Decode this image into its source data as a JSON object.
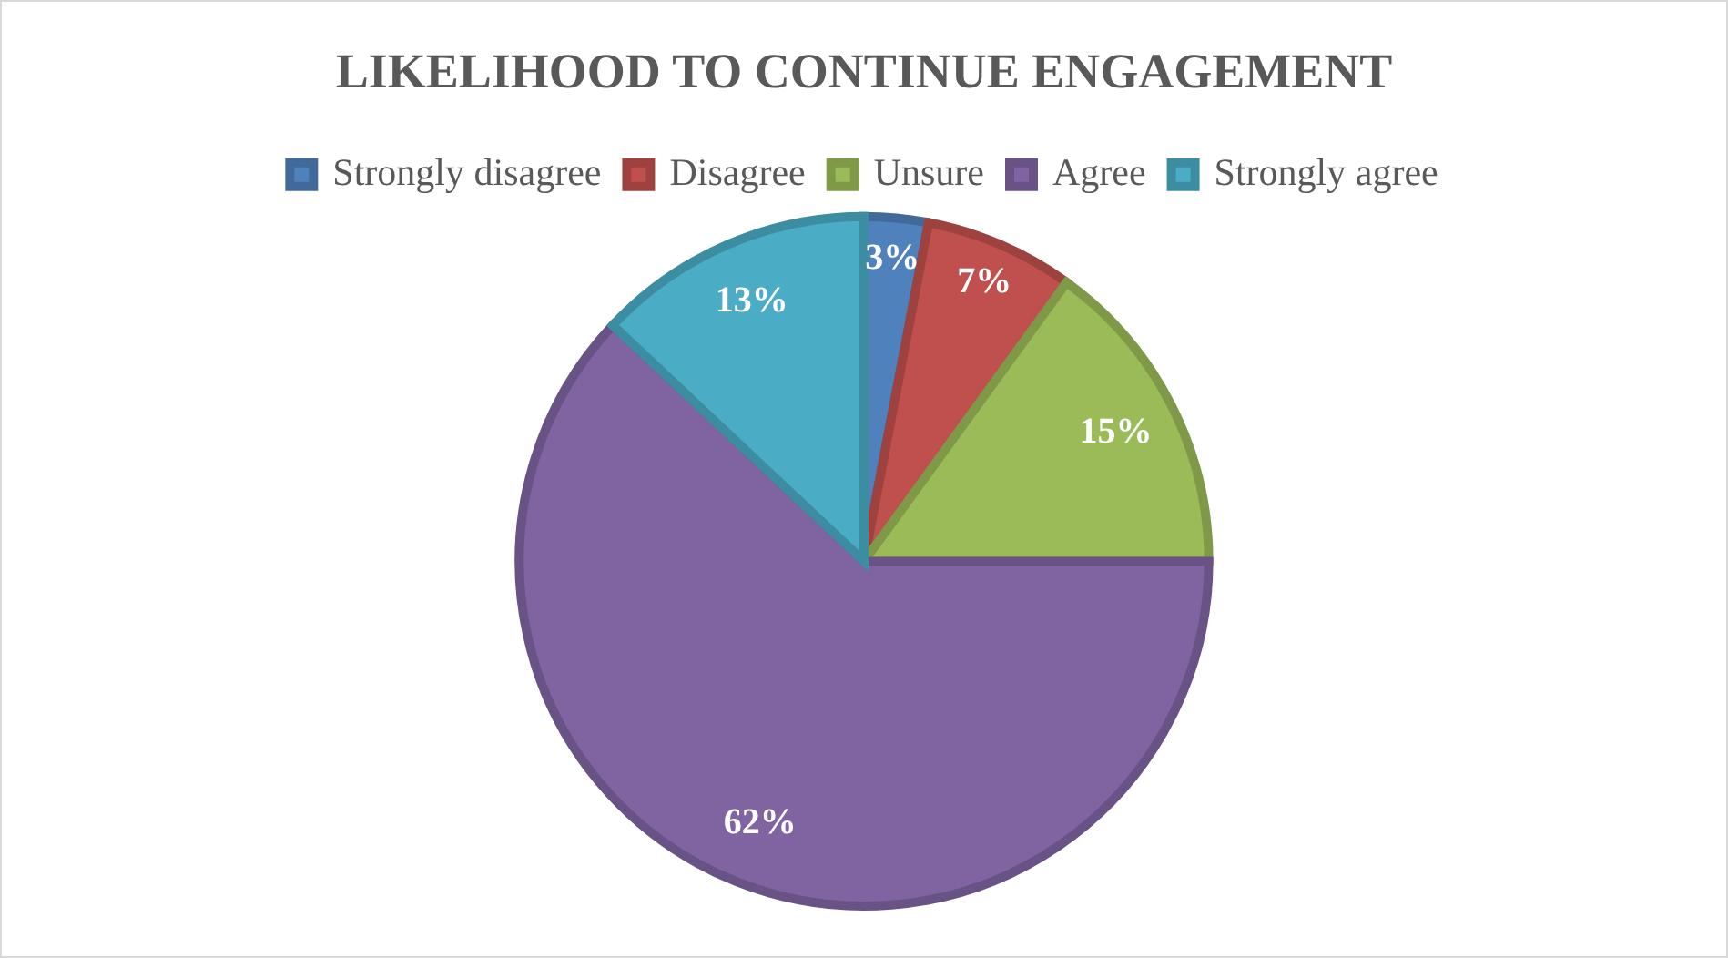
{
  "chart_data": {
    "type": "pie",
    "title": "LIKELIHOOD TO CONTINUE ENGAGEMENT",
    "categories": [
      "Strongly disagree",
      "Disagree",
      "Unsure",
      "Agree",
      "Strongly agree"
    ],
    "values": [
      3,
      7,
      15,
      62,
      13
    ],
    "colors": [
      "#4f81bd",
      "#c0504d",
      "#9bbb59",
      "#8064a2",
      "#4bacc6"
    ],
    "value_labels": [
      "3%",
      "7%",
      "15%",
      "62%",
      "13%"
    ],
    "legend": "top"
  }
}
